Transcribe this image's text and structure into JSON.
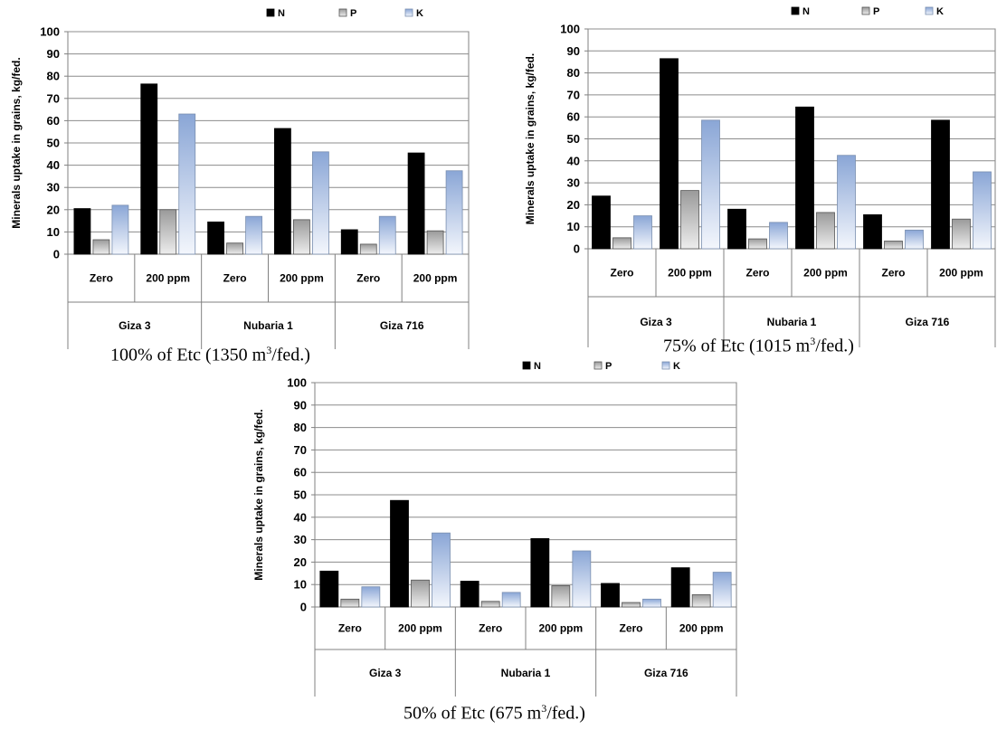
{
  "chart_data": [
    {
      "type": "bar",
      "caption": {
        "prefix": "100% of Etc (1350 m",
        "sup": "3",
        "suffix": "/fed.)"
      },
      "ylabel": "Minerals uptake in grains, kg/fed.",
      "ylim": [
        0,
        100
      ],
      "yticks": [
        "0",
        "10",
        "20",
        "30",
        "40",
        "50",
        "60",
        "70",
        "80",
        "90",
        "100"
      ],
      "grid": true,
      "legend_position": "top",
      "categories": [
        "Zero",
        "200 ppm",
        "Zero",
        "200 ppm",
        "Zero",
        "200 ppm"
      ],
      "groups": [
        "Giza 3",
        "Nubaria 1",
        "Giza 716"
      ],
      "series": [
        {
          "name": "N",
          "values": [
            20.5,
            76.5,
            14.5,
            56.5,
            11,
            45.5
          ]
        },
        {
          "name": "P",
          "values": [
            6.5,
            20,
            5,
            15.5,
            4.5,
            10.5
          ]
        },
        {
          "name": "K",
          "values": [
            22,
            63,
            17,
            46,
            17,
            37.5
          ]
        }
      ]
    },
    {
      "type": "bar",
      "caption": {
        "prefix": "75% of Etc (1015 m",
        "sup": "3",
        "suffix": "/fed.)"
      },
      "ylabel": "Minerals uptake in grains, kg/fed.",
      "ylim": [
        0,
        100
      ],
      "yticks": [
        "0",
        "10",
        "20",
        "30",
        "40",
        "50",
        "60",
        "70",
        "80",
        "90",
        "100"
      ],
      "grid": true,
      "legend_position": "top",
      "categories": [
        "Zero",
        "200 ppm",
        "Zero",
        "200 ppm",
        "Zero",
        "200 ppm"
      ],
      "groups": [
        "Giza 3",
        "Nubaria 1",
        "Giza 716"
      ],
      "series": [
        {
          "name": "N",
          "values": [
            24,
            86.5,
            18,
            64.5,
            15.5,
            58.5
          ]
        },
        {
          "name": "P",
          "values": [
            5,
            26.5,
            4.5,
            16.5,
            3.5,
            13.5
          ]
        },
        {
          "name": "K",
          "values": [
            15,
            58.5,
            12,
            42.5,
            8.5,
            35
          ]
        }
      ]
    },
    {
      "type": "bar",
      "caption": {
        "prefix": "50% of Etc (675 m",
        "sup": "3",
        "suffix": "/fed.)"
      },
      "ylabel": "Minerals uptake in grains, kg/fed.",
      "ylim": [
        0,
        100
      ],
      "yticks": [
        "0",
        "10",
        "20",
        "30",
        "40",
        "50",
        "60",
        "70",
        "80",
        "90",
        "100"
      ],
      "grid": true,
      "legend_position": "top",
      "categories": [
        "Zero",
        "200 ppm",
        "Zero",
        "200 ppm",
        "Zero",
        "200 ppm"
      ],
      "groups": [
        "Giza 3",
        "Nubaria 1",
        "Giza 716"
      ],
      "series": [
        {
          "name": "N",
          "values": [
            16,
            47.5,
            11.5,
            30.5,
            10.5,
            17.5
          ]
        },
        {
          "name": "P",
          "values": [
            3.5,
            12,
            2.5,
            9.5,
            2,
            5.5
          ]
        },
        {
          "name": "K",
          "values": [
            9,
            33,
            6.5,
            25,
            3.5,
            15.5
          ]
        }
      ]
    }
  ]
}
